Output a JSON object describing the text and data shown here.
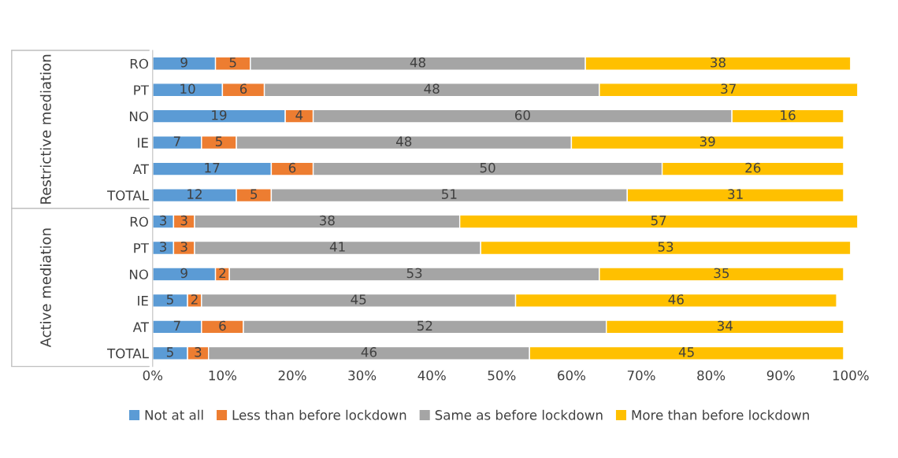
{
  "chart_data": {
    "type": "bar",
    "orientation": "horizontal",
    "stacked": true,
    "categories": [
      "RO",
      "PT",
      "NO",
      "IE",
      "AT",
      "TOTAL",
      "RO",
      "PT",
      "NO",
      "IE",
      "AT",
      "TOTAL"
    ],
    "series": [
      {
        "name": "Not at all",
        "color": "#5b9bd5",
        "values": [
          9,
          10,
          19,
          7,
          17,
          12,
          3,
          3,
          9,
          5,
          7,
          5
        ]
      },
      {
        "name": "Less than before lockdown",
        "color": "#ed7d31",
        "values": [
          5,
          6,
          4,
          5,
          6,
          5,
          3,
          3,
          2,
          2,
          6,
          3
        ]
      },
      {
        "name": "Same as before lockdown",
        "color": "#a5a5a5",
        "values": [
          48,
          48,
          60,
          48,
          50,
          51,
          38,
          41,
          53,
          45,
          52,
          46
        ]
      },
      {
        "name": "More than before lockdown",
        "color": "#ffc000",
        "values": [
          38,
          37,
          16,
          39,
          26,
          31,
          57,
          53,
          35,
          46,
          34,
          45
        ]
      }
    ],
    "xlim": [
      0,
      101
    ],
    "xticks": [
      {
        "value": 0,
        "label": "0%"
      },
      {
        "value": 10,
        "label": "10%"
      },
      {
        "value": 20,
        "label": "20%"
      },
      {
        "value": 30,
        "label": "30%"
      },
      {
        "value": 40,
        "label": "40%"
      },
      {
        "value": 50,
        "label": "50%"
      },
      {
        "value": 60,
        "label": "60%"
      },
      {
        "value": 70,
        "label": "70%"
      },
      {
        "value": 80,
        "label": "80%"
      },
      {
        "value": 90,
        "label": "90%"
      },
      {
        "value": 100,
        "label": "100%"
      }
    ],
    "annotations": [
      "Restrictive mediation",
      "Active mediation"
    ],
    "data_labels": true,
    "grid": false,
    "legend": "bottom"
  }
}
